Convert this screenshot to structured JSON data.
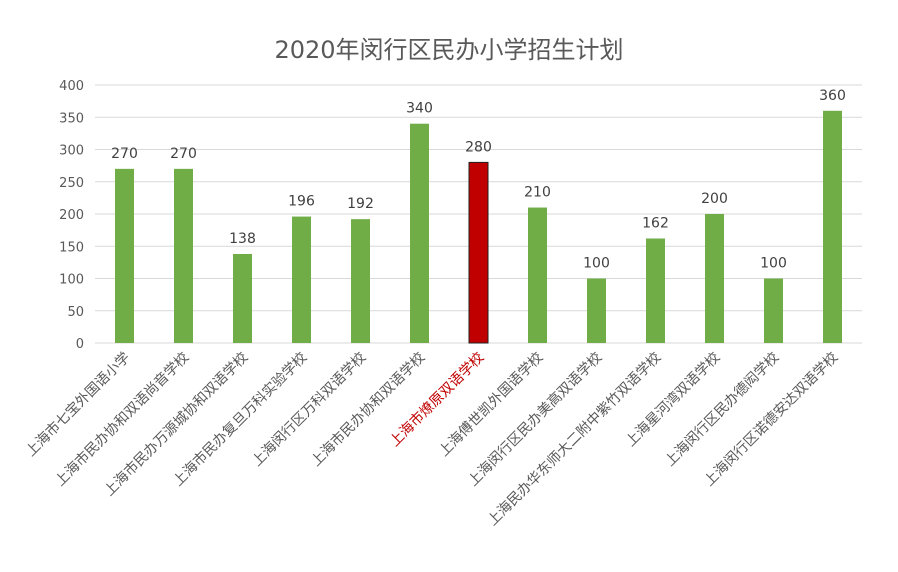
{
  "chart_data": {
    "type": "bar",
    "title": "2020年闵行区民办小学招生计划",
    "categories": [
      "上海市七宝外国语小学",
      "上海市民办协和双语尚音学校",
      "上海市民办万源城协和双语学校",
      "上海市民办复旦万科实验学校",
      "上海闵行区万科双语学校",
      "上海市民办协和双语学校",
      "上海市燎原双语学校",
      "上海傅世凯外国语学校",
      "上海闵行区民办美高双语学校",
      "上海民办华东师大二附中紫竹双语学校",
      "上海星河湾双语学校",
      "上海闵行区民办德闳学校",
      "上海闵行区诺德安达双语学校"
    ],
    "values": [
      270,
      270,
      138,
      196,
      192,
      340,
      280,
      210,
      100,
      162,
      200,
      100,
      360
    ],
    "ylim": [
      0,
      400
    ],
    "yticks": [
      0,
      50,
      100,
      150,
      200,
      250,
      300,
      350,
      400
    ],
    "highlight_index": 6,
    "colors": {
      "bar": "#70AD47",
      "highlight_bar": "#C00000",
      "highlight_label": "#C00000",
      "label": "#595959",
      "grid": "#D9D9D9"
    },
    "grid": true
  }
}
